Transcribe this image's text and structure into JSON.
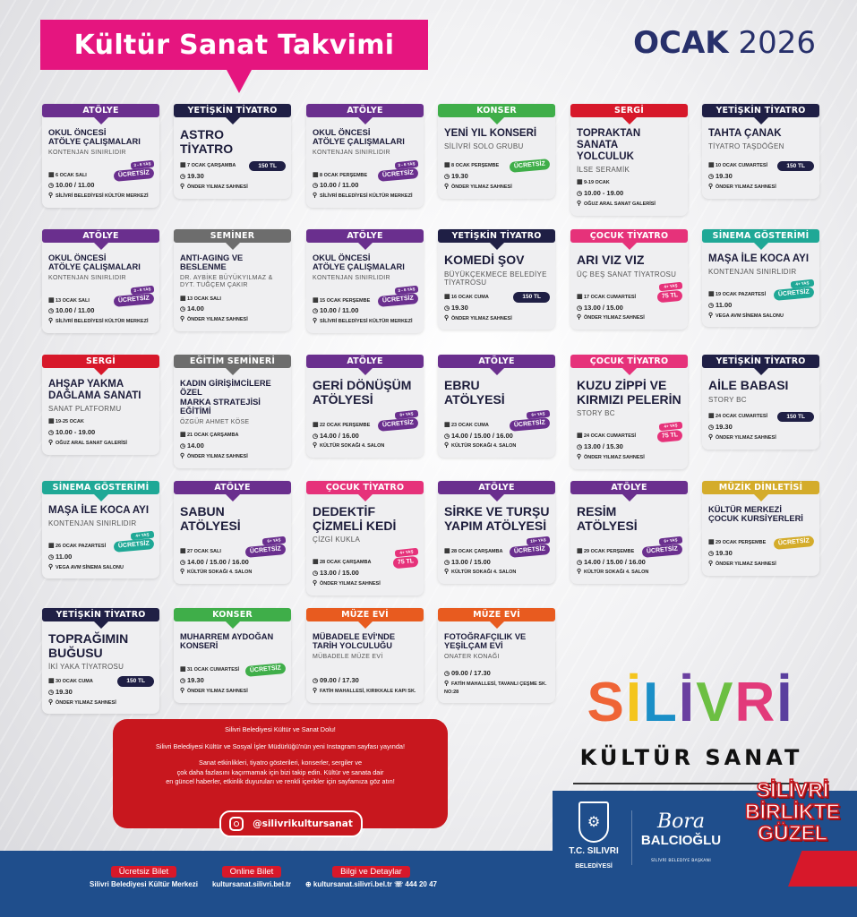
{
  "header": {
    "title": "Kültür Sanat Takvimi",
    "month": "OCAK",
    "year": "2026"
  },
  "category_colors": {
    "ATÖLYE": "#6a2f8e",
    "YETİŞKİN TİYATRO": "#1f1f45",
    "KONSER": "#3fae49",
    "SERGİ": "#d7182a",
    "SEMİNER": "#6d6d6d",
    "EĞİTİM SEMİNERİ": "#6d6d6d",
    "ÇOCUK TİYATRO": "#e6327a",
    "SİNEMA GÖSTERİMİ": "#1fa896",
    "MÜZİK DİNLETİSİ": "#d4ac2b",
    "MÜZE EVİ": "#e85b1f"
  },
  "events": [
    {
      "cat": "ATÖLYE",
      "title": "OKUL ÖNCESİ\nATÖLYE ÇALIŞMALARI",
      "sub": "KONTENJAN SINIRLIDIR",
      "date": "6 OCAK SALI",
      "time": "10.00 / 11.00",
      "place": "SİLİVRİ BELEDİYESİ KÜLTÜR MERKEZİ",
      "age": "3 - 6 YAŞ",
      "price": "ÜCRETSİZ"
    },
    {
      "cat": "YETİŞKİN TİYATRO",
      "title": "ASTRO\nTİYATRO",
      "sub": "",
      "date": "7 OCAK ÇARŞAMBA",
      "time": "19.30",
      "place": "ÖNDER YILMAZ SAHNESİ",
      "price": "150 TL"
    },
    {
      "cat": "ATÖLYE",
      "title": "OKUL ÖNCESİ\nATÖLYE ÇALIŞMALARI",
      "sub": "KONTENJAN SINIRLIDIR",
      "date": "8 OCAK PERŞEMBE",
      "time": "10.00 / 11.00",
      "place": "SİLİVRİ BELEDİYESİ KÜLTÜR MERKEZİ",
      "age": "3 - 6 YAŞ",
      "price": "ÜCRETSİZ"
    },
    {
      "cat": "KONSER",
      "title": "YENİ YIL KONSERİ",
      "sub": "SİLİVRİ SOLO GRUBU",
      "date": "8 OCAK PERŞEMBE",
      "time": "19.30",
      "place": "ÖNDER YILMAZ SAHNESİ",
      "price": "ÜCRETSİZ"
    },
    {
      "cat": "SERGİ",
      "title": "TOPRAKTAN SANATA\nYOLCULUK",
      "sub": "İLSE SERAMİK",
      "date": "9-19 OCAK",
      "time": "10.00 - 19.00",
      "place": "OĞUZ ARAL SANAT GALERİSİ"
    },
    {
      "cat": "YETİŞKİN TİYATRO",
      "title": "TAHTA ÇANAK",
      "sub": "TİYATRO TAŞDÖĞEN",
      "date": "10 OCAK CUMARTESİ",
      "time": "19.30",
      "place": "ÖNDER YILMAZ SAHNESİ",
      "price": "150 TL"
    },
    {
      "cat": "ATÖLYE",
      "title": "OKUL ÖNCESİ\nATÖLYE ÇALIŞMALARI",
      "sub": "KONTENJAN SINIRLIDIR",
      "date": "13 OCAK SALI",
      "time": "10.00 / 11.00",
      "place": "SİLİVRİ BELEDİYESİ KÜLTÜR MERKEZİ",
      "age": "3 - 6 YAŞ",
      "price": "ÜCRETSİZ"
    },
    {
      "cat": "SEMİNER",
      "title": "ANTI-AGING VE\nBESLENME",
      "sub": "DR. AYBİKE BÜYÜKYILMAZ &\nDYT. TUĞÇEM ÇAKIR",
      "date": "13 OCAK SALI",
      "time": "14.00",
      "place": "ÖNDER YILMAZ SAHNESİ"
    },
    {
      "cat": "ATÖLYE",
      "title": "OKUL ÖNCESİ\nATÖLYE ÇALIŞMALARI",
      "sub": "KONTENJAN SINIRLIDIR",
      "date": "15 OCAK PERŞEMBE",
      "time": "10.00 / 11.00",
      "place": "SİLİVRİ BELEDİYESİ KÜLTÜR MERKEZİ",
      "age": "3 - 6 YAŞ",
      "price": "ÜCRETSİZ"
    },
    {
      "cat": "YETİŞKİN TİYATRO",
      "title": "KOMEDİ ŞOV",
      "sub": "BÜYÜKÇEKMECE BELEDİYE\nTİYATROSU",
      "date": "16 OCAK CUMA",
      "time": "19.30",
      "place": "ÖNDER YILMAZ SAHNESİ",
      "price": "150 TL"
    },
    {
      "cat": "ÇOCUK TİYATRO",
      "title": "ARI VIZ VIZ",
      "sub": "ÜÇ BEŞ SANAT TİYATROSU",
      "date": "17 OCAK CUMARTESİ",
      "time": "13.00 / 15.00",
      "place": "ÖNDER YILMAZ SAHNESİ",
      "age": "4+ YAŞ",
      "price": "75 TL"
    },
    {
      "cat": "SİNEMA GÖSTERİMİ",
      "title": "MAŞA İLE KOCA AYI",
      "sub": "KONTENJAN SINIRLIDIR",
      "date": "19 OCAK PAZARTESİ",
      "time": "11.00",
      "place": "VEGA AVM SİNEMA SALONU",
      "age": "4+ YAŞ",
      "price": "ÜCRETSİZ"
    },
    {
      "cat": "SERGİ",
      "title": "AHŞAP YAKMA\nDAĞLAMA SANATI",
      "sub": "SANAT PLATFORMU",
      "date": "19-25 OCAK",
      "time": "10.00 - 19.00",
      "place": "OĞUZ ARAL SANAT GALERİSİ"
    },
    {
      "cat": "EĞİTİM SEMİNERİ",
      "title": "KADIN GİRİŞİMCİLERE ÖZEL\nMARKA STRATEJİSİ EĞİTİMİ",
      "sub": "ÖZGÜR AHMET KÖSE",
      "date": "21 OCAK ÇARŞAMBA",
      "time": "14.00",
      "place": "ÖNDER YILMAZ SAHNESİ"
    },
    {
      "cat": "ATÖLYE",
      "title": "GERİ DÖNÜŞÜM\nATÖLYESİ",
      "sub": "",
      "date": "22 OCAK PERŞEMBE",
      "time": "14.00 / 16.00",
      "place": "KÜLTÜR SOKAĞI 4. SALON",
      "age": "8+ YAŞ",
      "price": "ÜCRETSİZ"
    },
    {
      "cat": "ATÖLYE",
      "title": "EBRU\nATÖLYESİ",
      "sub": "",
      "date": "23 OCAK CUMA",
      "time": "14.00 / 15.00 / 16.00",
      "place": "KÜLTÜR SOKAĞI 4. SALON",
      "age": "6+ YAŞ",
      "price": "ÜCRETSİZ"
    },
    {
      "cat": "ÇOCUK TİYATRO",
      "title": "KUZU ZİPPİ VE\nKIRMIZI PELERİN",
      "sub": "STORY BC",
      "date": "24 OCAK CUMARTESİ",
      "time": "13.00 / 15.30",
      "place": "ÖNDER YILMAZ SAHNESİ",
      "age": "4+ YAŞ",
      "price": "75 TL"
    },
    {
      "cat": "YETİŞKİN TİYATRO",
      "title": "AİLE BABASI",
      "sub": "STORY BC",
      "date": "24 OCAK CUMARTESİ",
      "time": "19.30",
      "place": "ÖNDER YILMAZ SAHNESİ",
      "price": "150 TL"
    },
    {
      "cat": "SİNEMA GÖSTERİMİ",
      "title": "MAŞA İLE KOCA AYI",
      "sub": "KONTENJAN SINIRLIDIR",
      "date": "26 OCAK PAZARTESİ",
      "time": "11.00",
      "place": "VEGA AVM SİNEMA SALONU",
      "age": "4+ YAŞ",
      "price": "ÜCRETSİZ"
    },
    {
      "cat": "ATÖLYE",
      "title": "SABUN\nATÖLYESİ",
      "sub": "",
      "date": "27 OCAK SALI",
      "time": "14.00 / 15.00 / 16.00",
      "place": "KÜLTÜR SOKAĞI 4. SALON",
      "age": "6+ YAŞ",
      "price": "ÜCRETSİZ"
    },
    {
      "cat": "ÇOCUK TİYATRO",
      "title": "DEDEKTİF\nÇİZMELİ KEDİ",
      "sub": "ÇİZGİ KUKLA",
      "date": "28 OCAK ÇARŞAMBA",
      "time": "13.00 / 15.00",
      "place": "ÖNDER YILMAZ SAHNESİ",
      "age": "4+ YAŞ",
      "price": "75 TL"
    },
    {
      "cat": "ATÖLYE",
      "title": "SİRKE VE TURŞU\nYAPIM ATÖLYESİ",
      "sub": "",
      "date": "28 OCAK ÇARŞAMBA",
      "time": "13.00 / 15.00",
      "place": "KÜLTÜR SOKAĞI 4. SALON",
      "age": "10+ YAŞ",
      "price": "ÜCRETSİZ"
    },
    {
      "cat": "ATÖLYE",
      "title": "RESİM\nATÖLYESİ",
      "sub": "",
      "date": "29 OCAK PERŞEMBE",
      "time": "14.00 / 15.00 / 16.00",
      "place": "KÜLTÜR SOKAĞI 4. SALON",
      "age": "6+ YAŞ",
      "price": "ÜCRETSİZ"
    },
    {
      "cat": "MÜZİK DİNLETİSİ",
      "title": "KÜLTÜR MERKEZİ\nÇOCUK KURSİYERLERİ",
      "sub": "",
      "date": "29 OCAK PERŞEMBE",
      "time": "19.30",
      "place": "ÖNDER YILMAZ SAHNESİ",
      "price": "ÜCRETSİZ"
    },
    {
      "cat": "YETİŞKİN TİYATRO",
      "title": "TOPRAĞIMIN\nBUĞUSU",
      "sub": "İKİ YAKA TİYATROSU",
      "date": "30 OCAK CUMA",
      "time": "19.30",
      "place": "ÖNDER YILMAZ SAHNESİ",
      "price": "150 TL"
    },
    {
      "cat": "KONSER",
      "title": "MUHARREM AYDOĞAN\nKONSERİ",
      "sub": "",
      "date": "31 OCAK CUMARTESİ",
      "time": "19.30",
      "place": "ÖNDER YILMAZ SAHNESİ",
      "price": "ÜCRETSİZ"
    },
    {
      "cat": "MÜZE EVİ",
      "title": "MÜBADELE EVİ'NDE\nTARİH YOLCULUĞU",
      "sub": "MÜBADELE MÜZE EVİ",
      "time": "09.00 / 17.30",
      "place": "FATİH MAHALLESİ, KIRIKKALE KAPI SK."
    },
    {
      "cat": "MÜZE EVİ",
      "title": "FOTOĞRAFÇILIK VE\nYEŞİLÇAM EVİ",
      "sub": "ONATER KONAĞI",
      "time": "09.00 / 17.30",
      "place": "FATİH MAHALLESİ, TAVANLI ÇEŞME SK. NO:28"
    }
  ],
  "promo": {
    "line1": "Silivri Belediyesi Kültür ve Sanat Dolu!",
    "line2": "Silivri Belediyesi Kültür ve Sosyal İşler Müdürlüğü'nün yeni Instagram sayfası yayında!",
    "line3": "Sanat etkinlikleri, tiyatro gösterileri, konserler, sergiler ve\nçok daha fazlasını kaçırmamak için bizi takip edin. Kültür ve sanata dair\nen güncel haberler, etkinlik duyuruları ve renkli içerikler için sayfamıza göz atın!",
    "instagram": "@silivrikultursanat"
  },
  "brand": {
    "logo_letters": [
      "S",
      "İ",
      "L",
      "İ",
      "V",
      "R",
      "İ"
    ],
    "logo_colors": [
      "#ef6436",
      "#f4c51d",
      "#1b8fc7",
      "#6a3fa0",
      "#6cbf42",
      "#e23a7a",
      "#5a3f9e"
    ],
    "subtitle": "KÜLTÜR SANAT",
    "municipality_line1": "T.C. SILIVRI",
    "municipality_line2": "BELEDİYESİ",
    "mayor_first": "Bora",
    "mayor_last": "BALCIOĞLU",
    "mayor_title": "SİLİVRİ BELEDİYE BAŞKANI",
    "slogan": "SİLİVRİ\nBİRLİKTE\nGÜZEL"
  },
  "footer": [
    {
      "label": "Ücretsiz Bilet",
      "value": "Silivri Belediyesi Kültür Merkezi"
    },
    {
      "label": "Online Bilet",
      "value": "kultursanat.silivri.bel.tr"
    },
    {
      "label": "Bilgi ve Detaylar",
      "value": "⊕ kultursanat.silivri.bel.tr  ☏ 444 20 47"
    }
  ]
}
